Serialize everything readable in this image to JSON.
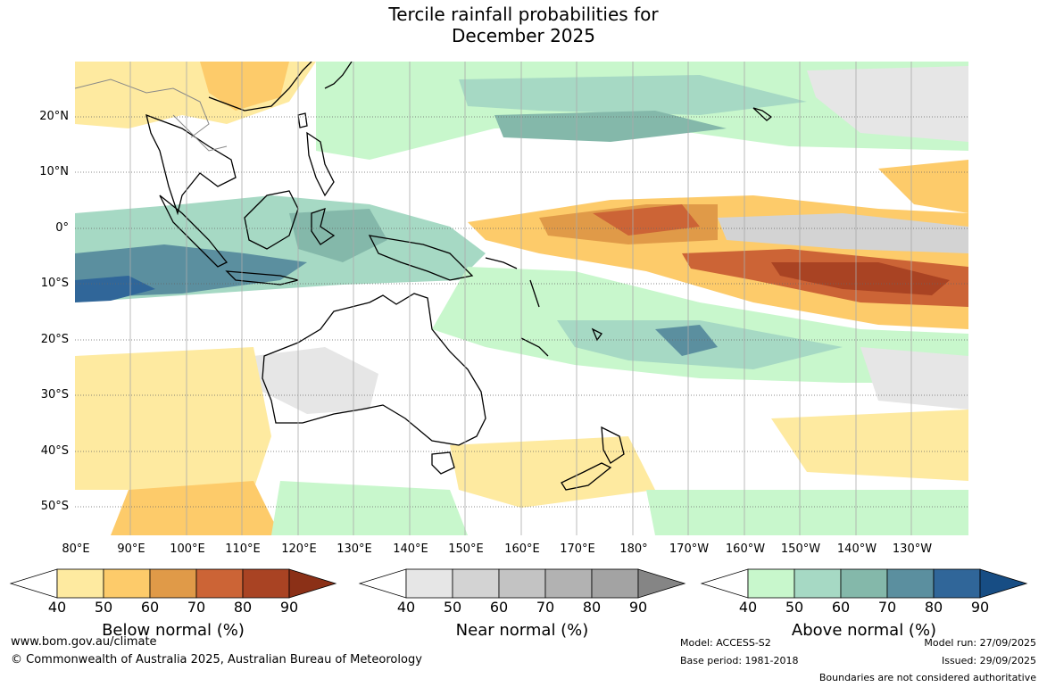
{
  "title": {
    "line1": "Tercile rainfall probabilities for",
    "line2": "December 2025"
  },
  "lat_labels": [
    "20°N",
    "10°N",
    "0°",
    "10°S",
    "20°S",
    "30°S",
    "40°S",
    "50°S"
  ],
  "lon_labels": [
    "80°E",
    "90°E",
    "100°E",
    "110°E",
    "120°E",
    "130°E",
    "140°E",
    "150°E",
    "160°E",
    "170°E",
    "180°",
    "170°W",
    "160°W",
    "150°W",
    "140°W",
    "130°W"
  ],
  "colorbars": [
    {
      "title": "Below normal (%)",
      "ticks": [
        "40",
        "50",
        "60",
        "70",
        "80",
        "90"
      ],
      "colors": [
        "#ffffff",
        "#feeaa0",
        "#fdcb6a",
        "#e09a48",
        "#cc6436",
        "#a94323",
        "#8b3017"
      ]
    },
    {
      "title": "Near normal (%)",
      "ticks": [
        "40",
        "50",
        "60",
        "70",
        "80",
        "90"
      ],
      "colors": [
        "#ffffff",
        "#e6e6e6",
        "#d3d3d3",
        "#c3c3c3",
        "#b2b2b2",
        "#a3a3a3",
        "#858585"
      ]
    },
    {
      "title": "Above normal (%)",
      "ticks": [
        "40",
        "50",
        "60",
        "70",
        "80",
        "90"
      ],
      "colors": [
        "#ffffff",
        "#c8f7cc",
        "#a6d9c4",
        "#84b8aa",
        "#5b8f9f",
        "#306699",
        "#174d84"
      ]
    }
  ],
  "footer": {
    "website": "www.bom.gov.au/climate",
    "copyright": "© Commonwealth of Australia 2025, Australian Bureau of Meteorology",
    "model": "Model: ACCESS-S2",
    "base_period": "Base period: 1981-2018",
    "model_run": "Model run: 27/09/2025",
    "issued": "Issued: 29/09/2025",
    "disclaimer": "Boundaries are not considered authoritative"
  }
}
